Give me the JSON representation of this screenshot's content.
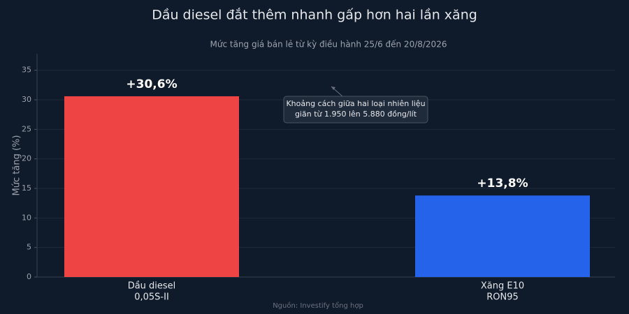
{
  "chart_data": {
    "type": "bar",
    "title": "Dầu diesel đắt thêm nhanh gấp hơn hai lần xăng",
    "subtitle": "Mức tăng giá bán lẻ từ kỳ điều hành 25/6 đến 20/8/2026",
    "y_label": "Mức tăng (%)",
    "categories": [
      [
        "Dầu diesel",
        "0,05S-II"
      ],
      [
        "Xăng E10",
        "RON95"
      ]
    ],
    "values": [
      30.6,
      13.8
    ],
    "value_labels": [
      "+30,6%",
      "+13,8%"
    ],
    "colors": [
      "#ef4444",
      "#2563eb"
    ],
    "ylim": [
      0,
      37.8
    ],
    "yticks": [
      0,
      5,
      10,
      15,
      20,
      25,
      30,
      35
    ],
    "grid": true,
    "annotation": [
      "Khoảng cách giữa hai loại nhiên liệu",
      "giãn từ 1.950 lên 5.880 đồng/lít"
    ],
    "source": "Nguồn: Investify tổng hợp"
  }
}
